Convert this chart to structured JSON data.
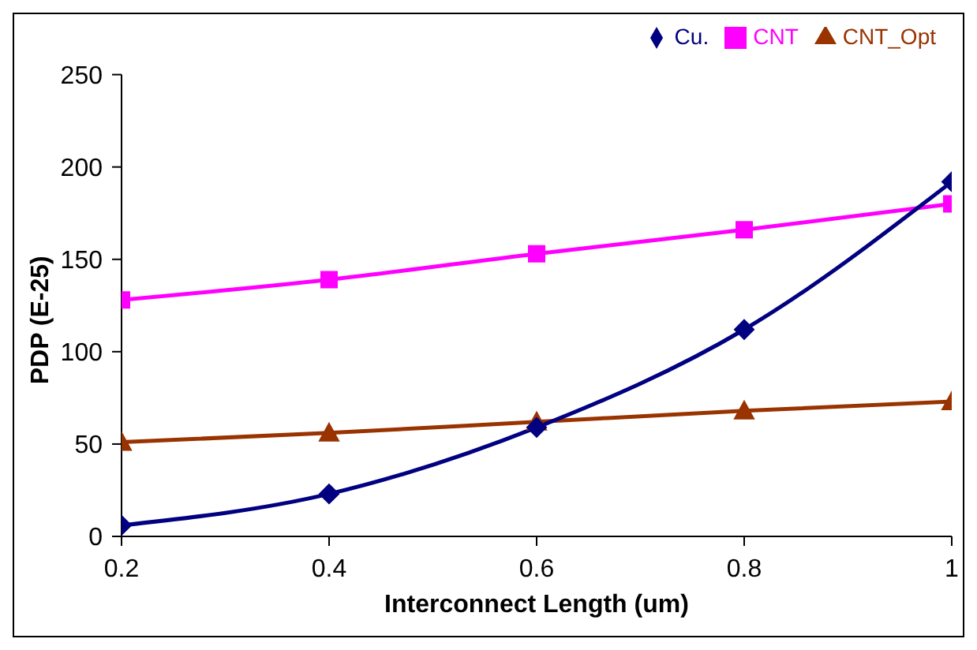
{
  "chart_data": {
    "type": "line",
    "xlabel": "Interconnect Length (um)",
    "ylabel": "PDP (E-25)",
    "x": [
      0.2,
      0.4,
      0.6,
      0.8,
      1
    ],
    "xlim": [
      0.2,
      1
    ],
    "xticks": [
      0.2,
      0.4,
      0.6,
      0.8,
      1
    ],
    "ylim": [
      0,
      250
    ],
    "yticks": [
      0,
      50,
      100,
      150,
      200,
      250
    ],
    "grid": false,
    "legend": "top right",
    "series": [
      {
        "name": "Cu.",
        "color": "#000080",
        "marker": "diamond",
        "values": [
          6,
          23,
          59,
          112,
          192
        ]
      },
      {
        "name": "CNT",
        "color": "#ff00ff",
        "marker": "square",
        "values": [
          128,
          139,
          153,
          166,
          180
        ]
      },
      {
        "name": "CNT_Opt",
        "color": "#993300",
        "marker": "triangle",
        "values": [
          51,
          56,
          62,
          68,
          73
        ]
      }
    ]
  }
}
